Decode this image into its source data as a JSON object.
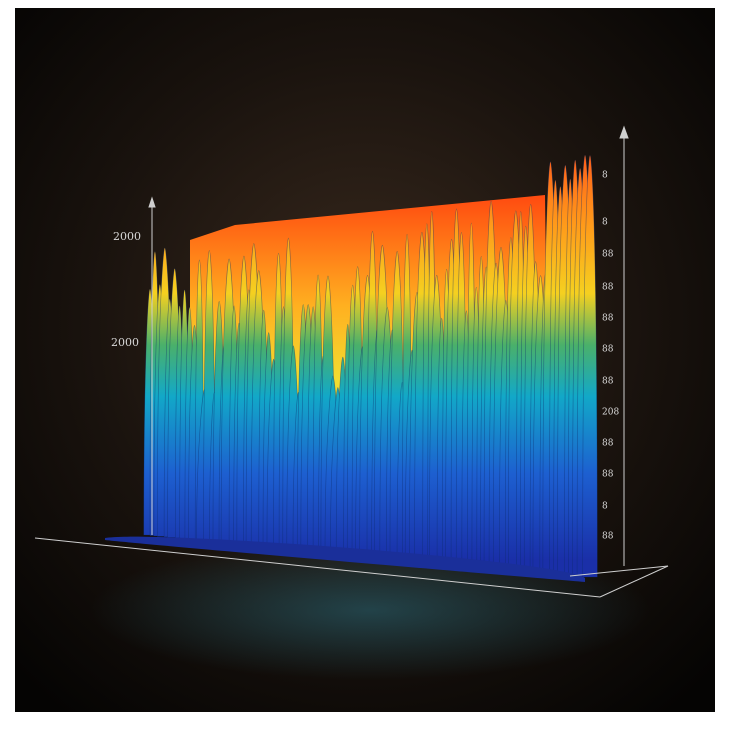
{
  "image": {
    "left_labels": [
      "2000",
      "2000"
    ],
    "right_labels": [
      "8",
      "8",
      "88",
      "88",
      "88",
      "88",
      "88",
      "208",
      "88",
      "88",
      "8",
      "88"
    ]
  }
}
